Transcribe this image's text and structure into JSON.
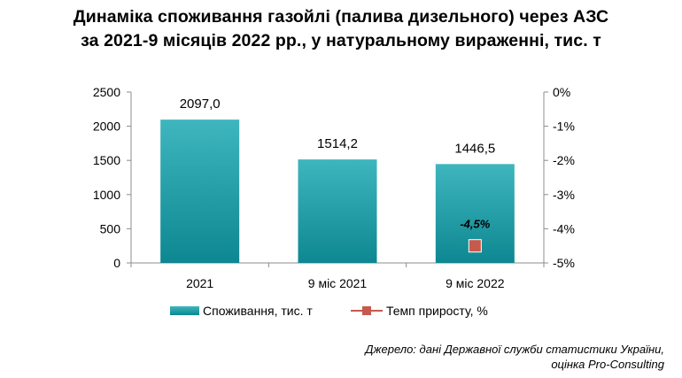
{
  "title_line1": "Динаміка  споживання  газойлі  (палива  дизельного)  через  АЗС",
  "title_line2": "за  2021-9  місяців  2022  рр.,  у  натуральному  вираженні,  тис. т",
  "source_line1": "Джерело: дані Державної служби статистики України,",
  "source_line2": "оцінка Pro-Consulting",
  "colors": {
    "bar_top": "#3fb6be",
    "bar_bottom": "#0d8791",
    "marker": "#c65a4d",
    "marker_border": "#ffffff"
  },
  "chart_data": {
    "type": "bar",
    "categories": [
      "2021",
      "9 міс 2021",
      "9 міс 2022"
    ],
    "series": [
      {
        "name": "Споживання, тис. т",
        "type": "bar",
        "axis": "left",
        "values": [
          2097.0,
          1514.2,
          1446.5
        ],
        "labels": [
          "2097,0",
          "1514,2",
          "1446,5"
        ]
      },
      {
        "name": "Темп приросту, %",
        "type": "line",
        "axis": "right",
        "values": [
          null,
          null,
          -4.5
        ],
        "labels": [
          "",
          "",
          "-4,5%"
        ]
      }
    ],
    "ylim": [
      0,
      2500
    ],
    "y_ticks": [
      "0",
      "500",
      "1000",
      "1500",
      "2000",
      "2500"
    ],
    "y2lim": [
      -5,
      0
    ],
    "y2_ticks": [
      "-5%",
      "-4%",
      "-3%",
      "-2%",
      "-1%",
      "0%"
    ],
    "legend_position": "bottom",
    "grid": false
  }
}
